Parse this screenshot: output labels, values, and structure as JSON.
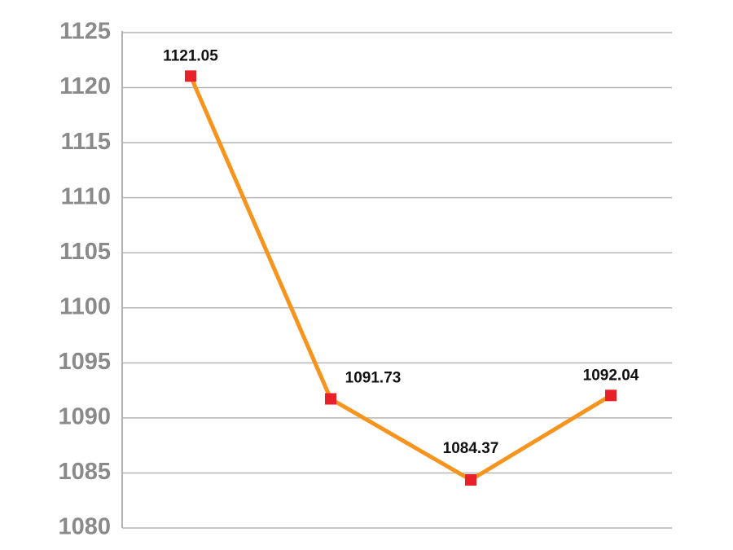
{
  "chart_data": {
    "type": "line",
    "categories": [
      null,
      null,
      null,
      null
    ],
    "values": [
      1121.05,
      1091.73,
      1084.37,
      1092.04
    ],
    "color": "#f7941d",
    "marker_color": "#e8202a",
    "ylim": [
      1080,
      1125
    ],
    "yticks": [
      1080,
      1085,
      1090,
      1095,
      1100,
      1105,
      1110,
      1115,
      1120,
      1125
    ],
    "grid": true
  }
}
